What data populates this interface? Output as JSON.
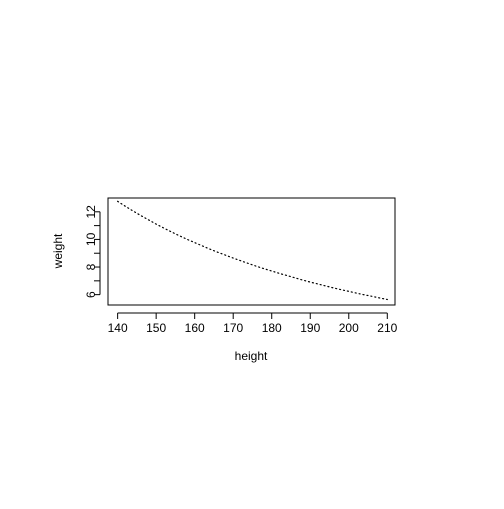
{
  "chart_data": {
    "type": "line",
    "title": "",
    "xlabel": "height",
    "ylabel": "weight",
    "xlim": [
      137.5,
      212
    ],
    "ylim": [
      5.25,
      13.0
    ],
    "grid": false,
    "line_style": "dotted",
    "x_ticks": [
      140,
      150,
      160,
      170,
      180,
      190,
      200,
      210
    ],
    "y_ticks": [
      6,
      8,
      10,
      12
    ],
    "y_minor_ticks": [
      7,
      9,
      11
    ],
    "series": [
      {
        "x": [
          140,
          142,
          144,
          146,
          148,
          150,
          152,
          154,
          156,
          158,
          160,
          162,
          164,
          166,
          168,
          170,
          172,
          174,
          176,
          178,
          180,
          182,
          184,
          186,
          188,
          190,
          192,
          194,
          196,
          198,
          200,
          202,
          204,
          206,
          208,
          210
        ],
        "y": [
          12.76,
          12.4,
          12.06,
          11.73,
          11.42,
          11.11,
          10.82,
          10.54,
          10.27,
          10.01,
          9.77,
          9.53,
          9.29,
          9.07,
          8.86,
          8.65,
          8.45,
          8.25,
          8.06,
          7.88,
          7.71,
          7.54,
          7.38,
          7.22,
          7.06,
          6.91,
          6.77,
          6.63,
          6.49,
          6.36,
          6.24,
          6.11,
          5.99,
          5.88,
          5.76,
          5.65
        ]
      }
    ],
    "colors": {
      "line": "#000000",
      "axis": "#000000"
    }
  }
}
